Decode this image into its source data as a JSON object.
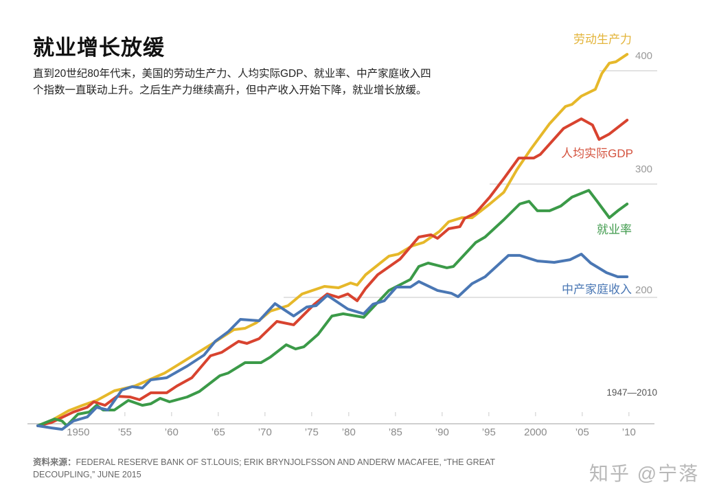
{
  "header": {
    "title": "就业增长放缓",
    "description": "直到20世纪80年代末，美国的劳动生产力、人均实际GDP、就业率、中产家庭收入四个指数一直联动上升。之后生产力继续高升，但中产收入开始下降，就业增长放缓。"
  },
  "footer": {
    "source_label": "资料来源：",
    "source_text": "FEDERAL RESERVE BANK OF ST.LOUIS; ERIK BRYNJOLFSSON AND ANDERW MACAFEE, “THE GREAT DECOUPLING,” JUNE 2015",
    "watermark": "知乎 @宁落"
  },
  "chart_data": {
    "type": "line",
    "title": "就业增长放缓",
    "range_label": "1947—2010",
    "xlim": [
      1947,
      2010
    ],
    "ylim": [
      87,
      420
    ],
    "grid": true,
    "y_gridlines": [
      200,
      300,
      400
    ],
    "y_tick_labels": [
      "200",
      "300",
      "400"
    ],
    "x_ticks": [
      1950,
      1955,
      1960,
      1965,
      1970,
      1975,
      1980,
      1985,
      1990,
      1995,
      2000,
      2005,
      2010
    ],
    "x_tick_labels": [
      "1950",
      "’55",
      "’60",
      "’65",
      "’70",
      "’75",
      "’80",
      "’85",
      "’90",
      "’95",
      "2000",
      "’05",
      "’10"
    ],
    "legend": "inline-right",
    "series": [
      {
        "name": "劳动生产力",
        "color": "#e6b82a",
        "label_color": "#e3b43a",
        "points": [
          [
            1947,
            86.7
          ],
          [
            1948.5,
            91.5
          ],
          [
            1950.3,
            100
          ],
          [
            1951.8,
            104.8
          ],
          [
            1953.3,
            109
          ],
          [
            1955.2,
            117.6
          ],
          [
            1957.4,
            121.8
          ],
          [
            1959.1,
            127.9
          ],
          [
            1960.6,
            133.3
          ],
          [
            1963,
            145.5
          ],
          [
            1965.5,
            158.2
          ],
          [
            1968,
            171.5
          ],
          [
            1969.2,
            172.7
          ],
          [
            1970.4,
            177.6
          ],
          [
            1971.9,
            187.9
          ],
          [
            1973.8,
            192.7
          ],
          [
            1975.3,
            203
          ],
          [
            1977.7,
            209.7
          ],
          [
            1979.2,
            208.5
          ],
          [
            1980.5,
            212.7
          ],
          [
            1981.2,
            210.9
          ],
          [
            1982.1,
            220
          ],
          [
            1984.6,
            236.4
          ],
          [
            1985.6,
            238.2
          ],
          [
            1987.1,
            245.5
          ],
          [
            1988.3,
            248.5
          ],
          [
            1990,
            258.2
          ],
          [
            1991,
            266.7
          ],
          [
            1992.4,
            270.3
          ],
          [
            1993.5,
            270.3
          ],
          [
            1995.4,
            282.4
          ],
          [
            1996.9,
            292.7
          ],
          [
            1998.3,
            312.7
          ],
          [
            1999.8,
            330.9
          ],
          [
            2001.8,
            353.3
          ],
          [
            2003.5,
            368.5
          ],
          [
            2004.2,
            370.3
          ],
          [
            2005.2,
            377.6
          ],
          [
            2006.7,
            383.6
          ],
          [
            2007.4,
            397.6
          ],
          [
            2008.2,
            406.7
          ],
          [
            2008.9,
            407.9
          ],
          [
            2010.1,
            414.5
          ]
        ]
      },
      {
        "name": "人均实际GDP",
        "color": "#d8432f",
        "label_color": "#d4533f",
        "points": [
          [
            1947,
            86.7
          ],
          [
            1948.5,
            89.7
          ],
          [
            1950.8,
            98.8
          ],
          [
            1952.3,
            103
          ],
          [
            1953,
            107.9
          ],
          [
            1954.2,
            104.8
          ],
          [
            1955.5,
            112.7
          ],
          [
            1956.9,
            112.1
          ],
          [
            1957.9,
            109.7
          ],
          [
            1959.1,
            115.8
          ],
          [
            1960.8,
            115.8
          ],
          [
            1961.9,
            121.8
          ],
          [
            1963.5,
            129.1
          ],
          [
            1965.5,
            148.5
          ],
          [
            1966.7,
            151.5
          ],
          [
            1968.5,
            161.2
          ],
          [
            1969.4,
            159.4
          ],
          [
            1970.7,
            163.6
          ],
          [
            1972.6,
            178.8
          ],
          [
            1974.4,
            175.8
          ],
          [
            1976.6,
            193.9
          ],
          [
            1978,
            203
          ],
          [
            1979.2,
            200
          ],
          [
            1980.2,
            203
          ],
          [
            1981.2,
            197
          ],
          [
            1982.1,
            207.9
          ],
          [
            1983.4,
            220
          ],
          [
            1985.8,
            233.9
          ],
          [
            1987.8,
            253.3
          ],
          [
            1989.1,
            255.2
          ],
          [
            1989.8,
            252.1
          ],
          [
            1991,
            260.6
          ],
          [
            1992.2,
            262.4
          ],
          [
            1992.7,
            269.7
          ],
          [
            1993.9,
            274.5
          ],
          [
            1995.4,
            288.5
          ],
          [
            1996.9,
            304.8
          ],
          [
            1998.5,
            323
          ],
          [
            2000.1,
            323
          ],
          [
            2000.8,
            326.1
          ],
          [
            2003.3,
            349.1
          ],
          [
            2005.2,
            357.6
          ],
          [
            2006.4,
            352.1
          ],
          [
            2007.1,
            339.4
          ],
          [
            2008.2,
            344.2
          ],
          [
            2010.1,
            356.4
          ]
        ]
      },
      {
        "name": "就业率",
        "color": "#3b9a48",
        "label_color": "#3f9a4c",
        "points": [
          [
            1947,
            86.7
          ],
          [
            1948.8,
            92.7
          ],
          [
            1949.6,
            90.9
          ],
          [
            1950.1,
            86.7
          ],
          [
            1951.3,
            97
          ],
          [
            1952.5,
            98.8
          ],
          [
            1953.3,
            104.8
          ],
          [
            1954,
            100.6
          ],
          [
            1955.2,
            100.6
          ],
          [
            1956.7,
            109.1
          ],
          [
            1958.2,
            104.8
          ],
          [
            1959.1,
            106.1
          ],
          [
            1960.1,
            110.9
          ],
          [
            1961.1,
            107.9
          ],
          [
            1963,
            112.1
          ],
          [
            1964.3,
            117
          ],
          [
            1966.5,
            130.9
          ],
          [
            1967.4,
            133.3
          ],
          [
            1969.2,
            142.4
          ],
          [
            1970.9,
            142.4
          ],
          [
            1971.9,
            147.3
          ],
          [
            1973.6,
            158.2
          ],
          [
            1974.6,
            154.5
          ],
          [
            1975.5,
            156.4
          ],
          [
            1977,
            167.3
          ],
          [
            1978.5,
            183.6
          ],
          [
            1979.7,
            185.5
          ],
          [
            1981.9,
            182.4
          ],
          [
            1984.6,
            206.1
          ],
          [
            1986.9,
            215.8
          ],
          [
            1987.8,
            227.3
          ],
          [
            1988.8,
            230.3
          ],
          [
            1990.8,
            226.1
          ],
          [
            1991.5,
            227.3
          ],
          [
            1993.9,
            248.5
          ],
          [
            1994.9,
            253.3
          ],
          [
            1996.9,
            268.5
          ],
          [
            1998.6,
            282.4
          ],
          [
            1999.6,
            284.8
          ],
          [
            2000.5,
            276.4
          ],
          [
            2001.8,
            276.4
          ],
          [
            2003,
            280.6
          ],
          [
            2004.2,
            288.5
          ],
          [
            2006,
            294.5
          ],
          [
            2006.9,
            284.8
          ],
          [
            2008.2,
            270.3
          ],
          [
            2009.1,
            276.4
          ],
          [
            2010.1,
            282.4
          ]
        ]
      },
      {
        "name": "中产家庭收入",
        "color": "#4a77b4",
        "label_color": "#4a77b4",
        "points": [
          [
            1947,
            86.7
          ],
          [
            1948.5,
            84.8
          ],
          [
            1949.6,
            83.6
          ],
          [
            1950.8,
            90.9
          ],
          [
            1952.3,
            94.5
          ],
          [
            1953.3,
            103
          ],
          [
            1954.5,
            100.6
          ],
          [
            1956,
            118.2
          ],
          [
            1957.1,
            121.2
          ],
          [
            1958.2,
            120
          ],
          [
            1959.1,
            127.3
          ],
          [
            1960.8,
            129.1
          ],
          [
            1963,
            139.4
          ],
          [
            1964.8,
            149.1
          ],
          [
            1966,
            161.2
          ],
          [
            1967.4,
            169.7
          ],
          [
            1968.7,
            180.6
          ],
          [
            1970.7,
            179.4
          ],
          [
            1972.4,
            194.5
          ],
          [
            1974.4,
            183.6
          ],
          [
            1975.8,
            191.5
          ],
          [
            1976.8,
            192.7
          ],
          [
            1978,
            201.8
          ],
          [
            1980.2,
            189.7
          ],
          [
            1981.9,
            185.5
          ],
          [
            1982.9,
            194
          ],
          [
            1984.1,
            197
          ],
          [
            1985.4,
            209.1
          ],
          [
            1986.9,
            209.1
          ],
          [
            1987.8,
            214
          ],
          [
            1989.8,
            206.1
          ],
          [
            1991.3,
            203.6
          ],
          [
            1992,
            200.6
          ],
          [
            1993.5,
            212.1
          ],
          [
            1994.9,
            218.2
          ],
          [
            1997.4,
            237
          ],
          [
            1998.6,
            237
          ],
          [
            2000.5,
            232.1
          ],
          [
            2002.3,
            230.9
          ],
          [
            2004,
            233.3
          ],
          [
            2005.2,
            238.2
          ],
          [
            2006.2,
            230.3
          ],
          [
            2007.9,
            221.8
          ],
          [
            2009.1,
            218.2
          ],
          [
            2010.1,
            218.2
          ]
        ]
      }
    ]
  }
}
